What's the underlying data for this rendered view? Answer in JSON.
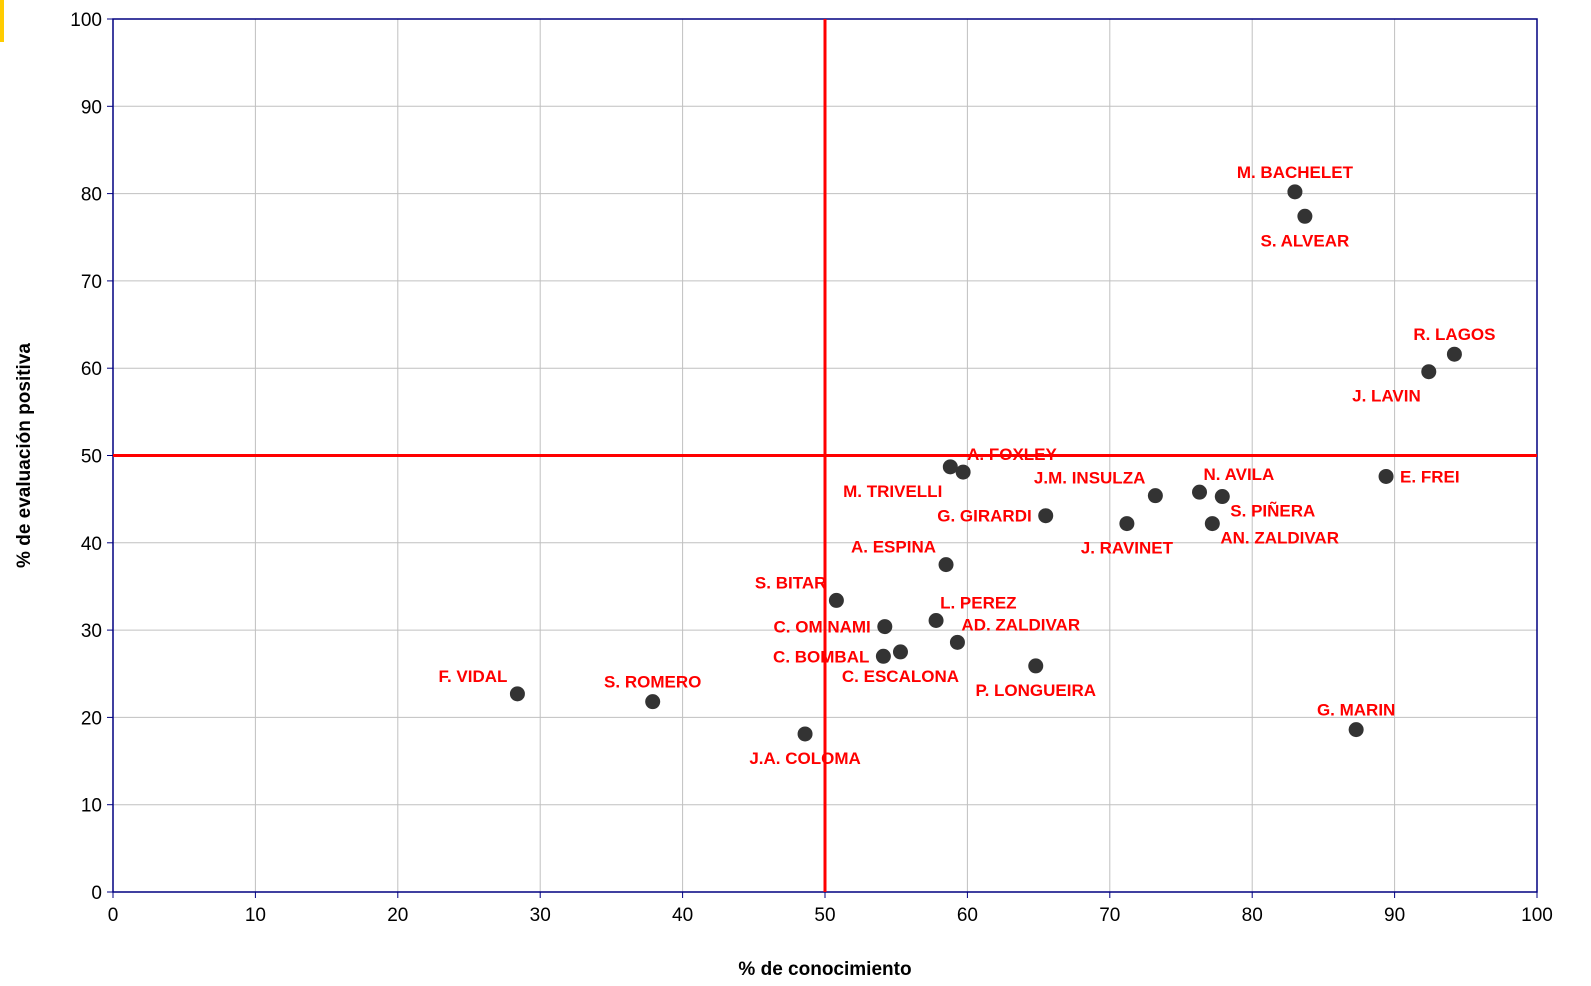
{
  "chart_data": {
    "type": "scatter",
    "title": "",
    "xlabel": "% de conocimiento",
    "ylabel": "% de evaluación positiva",
    "xlim": [
      0,
      100
    ],
    "ylim": [
      0,
      100
    ],
    "xticks": [
      "0",
      "10",
      "20",
      "30",
      "40",
      "50",
      "60",
      "70",
      "80",
      "90",
      "100"
    ],
    "yticks": [
      "0",
      "10",
      "20",
      "30",
      "40",
      "50",
      "60",
      "70",
      "80",
      "90",
      "100"
    ],
    "grid": true,
    "reference_lines": {
      "x": 50,
      "y": 50
    },
    "colors": {
      "marker": "#333333",
      "label": "#ff0000",
      "reference": "#ff0000",
      "plot_border": "#000080",
      "grid": "#c0c0c0",
      "corner_accent": "#ffcc00"
    },
    "points": [
      {
        "label": "M. BACHELET",
        "x": 83.0,
        "y": 80.2,
        "anchor": "top"
      },
      {
        "label": "S. ALVEAR",
        "x": 83.7,
        "y": 77.4,
        "anchor": "bottom"
      },
      {
        "label": "R. LAGOS",
        "x": 94.2,
        "y": 61.6,
        "anchor": "top"
      },
      {
        "label": "J. LAVIN",
        "x": 92.4,
        "y": 59.6,
        "anchor": "bottom-left"
      },
      {
        "label": "E. FREI",
        "x": 89.4,
        "y": 47.6,
        "anchor": "right"
      },
      {
        "label": "M. TRIVELLI",
        "x": 58.8,
        "y": 48.7,
        "anchor": "bottom-left"
      },
      {
        "label": "A. FOXLEY",
        "x": 59.7,
        "y": 48.1,
        "anchor": "top-right"
      },
      {
        "label": "J.M. INSULZA",
        "x": 73.2,
        "y": 45.4,
        "anchor": "top-left"
      },
      {
        "label": "N. AVILA",
        "x": 76.3,
        "y": 45.8,
        "anchor": "top-right"
      },
      {
        "label": "S. PIÑERA",
        "x": 77.9,
        "y": 45.3,
        "anchor": "bottom-right"
      },
      {
        "label": "G. GIRARDI",
        "x": 65.5,
        "y": 43.1,
        "anchor": "left"
      },
      {
        "label": "J. RAVINET",
        "x": 71.2,
        "y": 42.2,
        "anchor": "bottom"
      },
      {
        "label": "AN. ZALDIVAR",
        "x": 77.2,
        "y": 42.2,
        "anchor": "bottom-right"
      },
      {
        "label": "A. ESPINA",
        "x": 58.5,
        "y": 37.5,
        "anchor": "top-left"
      },
      {
        "label": "S. BITAR",
        "x": 50.8,
        "y": 33.4,
        "anchor": "top-left"
      },
      {
        "label": "L. PEREZ",
        "x": 57.8,
        "y": 31.1,
        "anchor": "top-right"
      },
      {
        "label": "C. OMINAMI",
        "x": 54.2,
        "y": 30.4,
        "anchor": "left"
      },
      {
        "label": "AD. ZALDIVAR",
        "x": 59.3,
        "y": 28.6,
        "anchor": "top-right"
      },
      {
        "label": "C. BOMBAL",
        "x": 54.1,
        "y": 27.0,
        "anchor": "left"
      },
      {
        "label": "C. ESCALONA",
        "x": 55.3,
        "y": 27.5,
        "anchor": "bottom"
      },
      {
        "label": "P. LONGUEIRA",
        "x": 64.8,
        "y": 25.9,
        "anchor": "bottom"
      },
      {
        "label": "F. VIDAL",
        "x": 28.4,
        "y": 22.7,
        "anchor": "top-left"
      },
      {
        "label": "S. ROMERO",
        "x": 37.9,
        "y": 21.8,
        "anchor": "top"
      },
      {
        "label": "G. MARIN",
        "x": 87.3,
        "y": 18.6,
        "anchor": "top"
      },
      {
        "label": "J.A. COLOMA",
        "x": 48.6,
        "y": 18.1,
        "anchor": "bottom"
      }
    ]
  }
}
